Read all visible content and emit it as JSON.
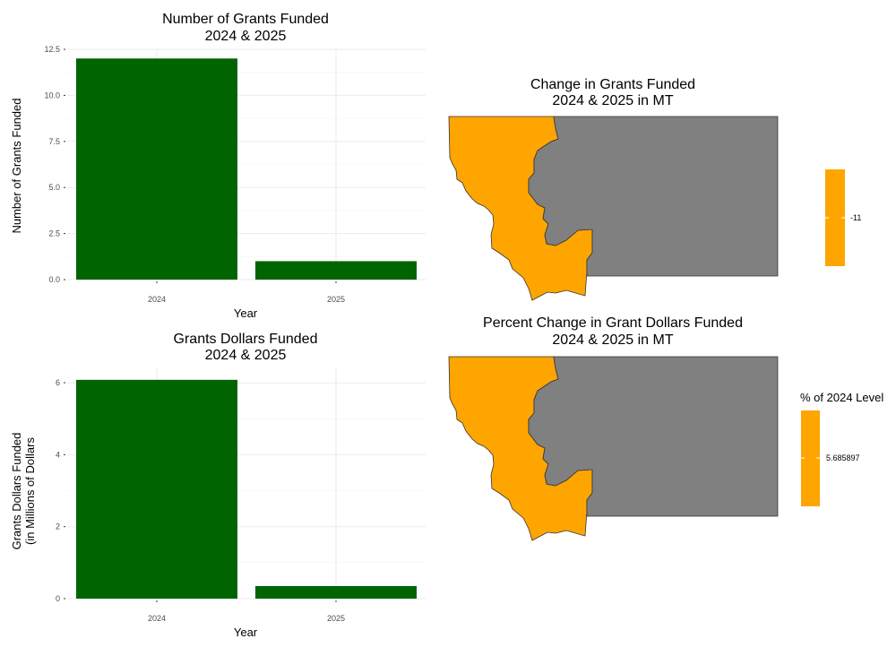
{
  "colors": {
    "bar": "#006400",
    "map_highlight": "#FFA500",
    "map_other": "#808080",
    "border": "#333333"
  },
  "chart_data": [
    {
      "id": "grants_count",
      "type": "bar",
      "title_line1": "Number of Grants Funded",
      "title_line2": "2024 & 2025",
      "xlabel": "Year",
      "ylabel_line1": "Number of Grants Funded",
      "ylabel_line2": "",
      "categories": [
        "2024",
        "2025"
      ],
      "values": [
        12,
        1
      ],
      "ylim": [
        0,
        12.5
      ],
      "yticks": [
        0,
        2.5,
        5,
        7.5,
        10,
        12.5
      ],
      "ytick_labels": [
        "0.0",
        "2.5",
        "5.0",
        "7.5",
        "10.0",
        "12.5"
      ],
      "grid": true
    },
    {
      "id": "grant_dollars",
      "type": "bar",
      "title_line1": "Grants Dollars Funded",
      "title_line2": "2024 & 2025",
      "xlabel": "Year",
      "ylabel_line1": "Grants Dollars Funded",
      "ylabel_line2": "(in Millions of Dollars",
      "categories": [
        "2024",
        "2025"
      ],
      "values": [
        6.08,
        0.35
      ],
      "ylim": [
        0,
        6.4
      ],
      "yticks": [
        0,
        2,
        4,
        6
      ],
      "ytick_labels": [
        "0",
        "2",
        "4",
        "6"
      ],
      "grid": true
    },
    {
      "id": "map_change_count",
      "type": "map",
      "title_line1": "Change in Grants Funded",
      "title_line2": "2024 & 2025 in MT",
      "legend_title": "",
      "legend_position": "right",
      "legend_value": -11,
      "legend_label": "-11",
      "regions": [
        {
          "name": "western",
          "highlighted": true
        },
        {
          "name": "eastern",
          "highlighted": false
        }
      ]
    },
    {
      "id": "map_pct_change",
      "type": "map",
      "title_line1": "Percent Change in Grant Dollars Funded",
      "title_line2": "2024 & 2025 in MT",
      "legend_title": "% of 2024 Level",
      "legend_position": "right",
      "legend_value": 5.685897,
      "legend_label": "5.685897",
      "regions": [
        {
          "name": "western",
          "highlighted": true
        },
        {
          "name": "eastern",
          "highlighted": false
        }
      ]
    }
  ]
}
